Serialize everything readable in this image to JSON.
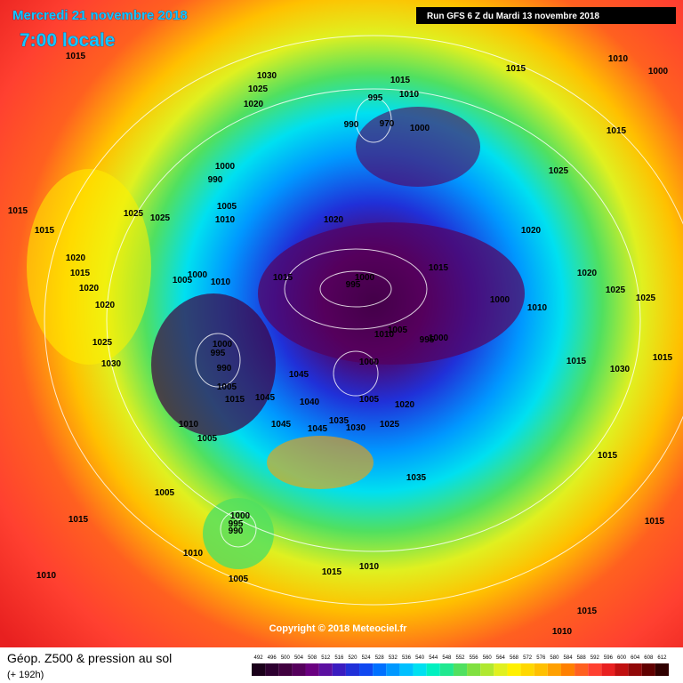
{
  "header": {
    "date": "Mercredi 21 novembre 2018",
    "time": "7:00 locale",
    "run": "Run GFS 6 Z du Mardi 13 novembre 2018"
  },
  "copyright": "Copyright © 2018 Meteociel.fr",
  "footer": {
    "title": "Géop. Z500 & pression au sol",
    "lead": "(+ 192h)"
  },
  "legend": {
    "values": [
      492,
      496,
      500,
      504,
      508,
      512,
      516,
      520,
      524,
      528,
      532,
      536,
      540,
      544,
      548,
      552,
      556,
      560,
      564,
      568,
      572,
      576,
      580,
      584,
      588,
      592,
      596,
      600,
      604,
      608,
      612
    ],
    "colors": [
      "#1a001a",
      "#2d0030",
      "#40003f",
      "#55005c",
      "#6a0080",
      "#5b0fa0",
      "#3a1cc0",
      "#2030d8",
      "#1048f0",
      "#0070ff",
      "#0098ff",
      "#00c0ff",
      "#00e0f0",
      "#00f0c0",
      "#20e890",
      "#50e060",
      "#80e040",
      "#b0e830",
      "#e0f020",
      "#fff000",
      "#ffd800",
      "#ffc000",
      "#ffa000",
      "#ff8000",
      "#ff6020",
      "#ff4030",
      "#e82020",
      "#c01010",
      "#900808",
      "#600000",
      "#300000"
    ]
  },
  "isobar_labels": [
    1015,
    1030,
    1025,
    1020,
    1015,
    995,
    1010,
    990,
    970,
    1000,
    1015,
    1010,
    1000,
    1015,
    1025,
    1000,
    990,
    1005,
    1010,
    1015,
    1025,
    1025,
    1015,
    1020,
    1020,
    1020,
    1015,
    1020,
    1020,
    1005,
    1000,
    1010,
    1015,
    1000,
    995,
    1015,
    1020,
    1025,
    1025,
    1000,
    1010,
    1025,
    1030,
    1000,
    995,
    990,
    1010,
    1005,
    995,
    1000,
    1000,
    1045,
    1005,
    1015,
    1045,
    1040,
    1005,
    1020,
    1015,
    1030,
    1015,
    1010,
    1045,
    1045,
    1035,
    1030,
    1025,
    1005,
    1035,
    1015,
    1005,
    1000,
    995,
    990,
    1015,
    1010,
    1015,
    1010,
    1005,
    1015,
    1010,
    1015,
    1010
  ]
}
